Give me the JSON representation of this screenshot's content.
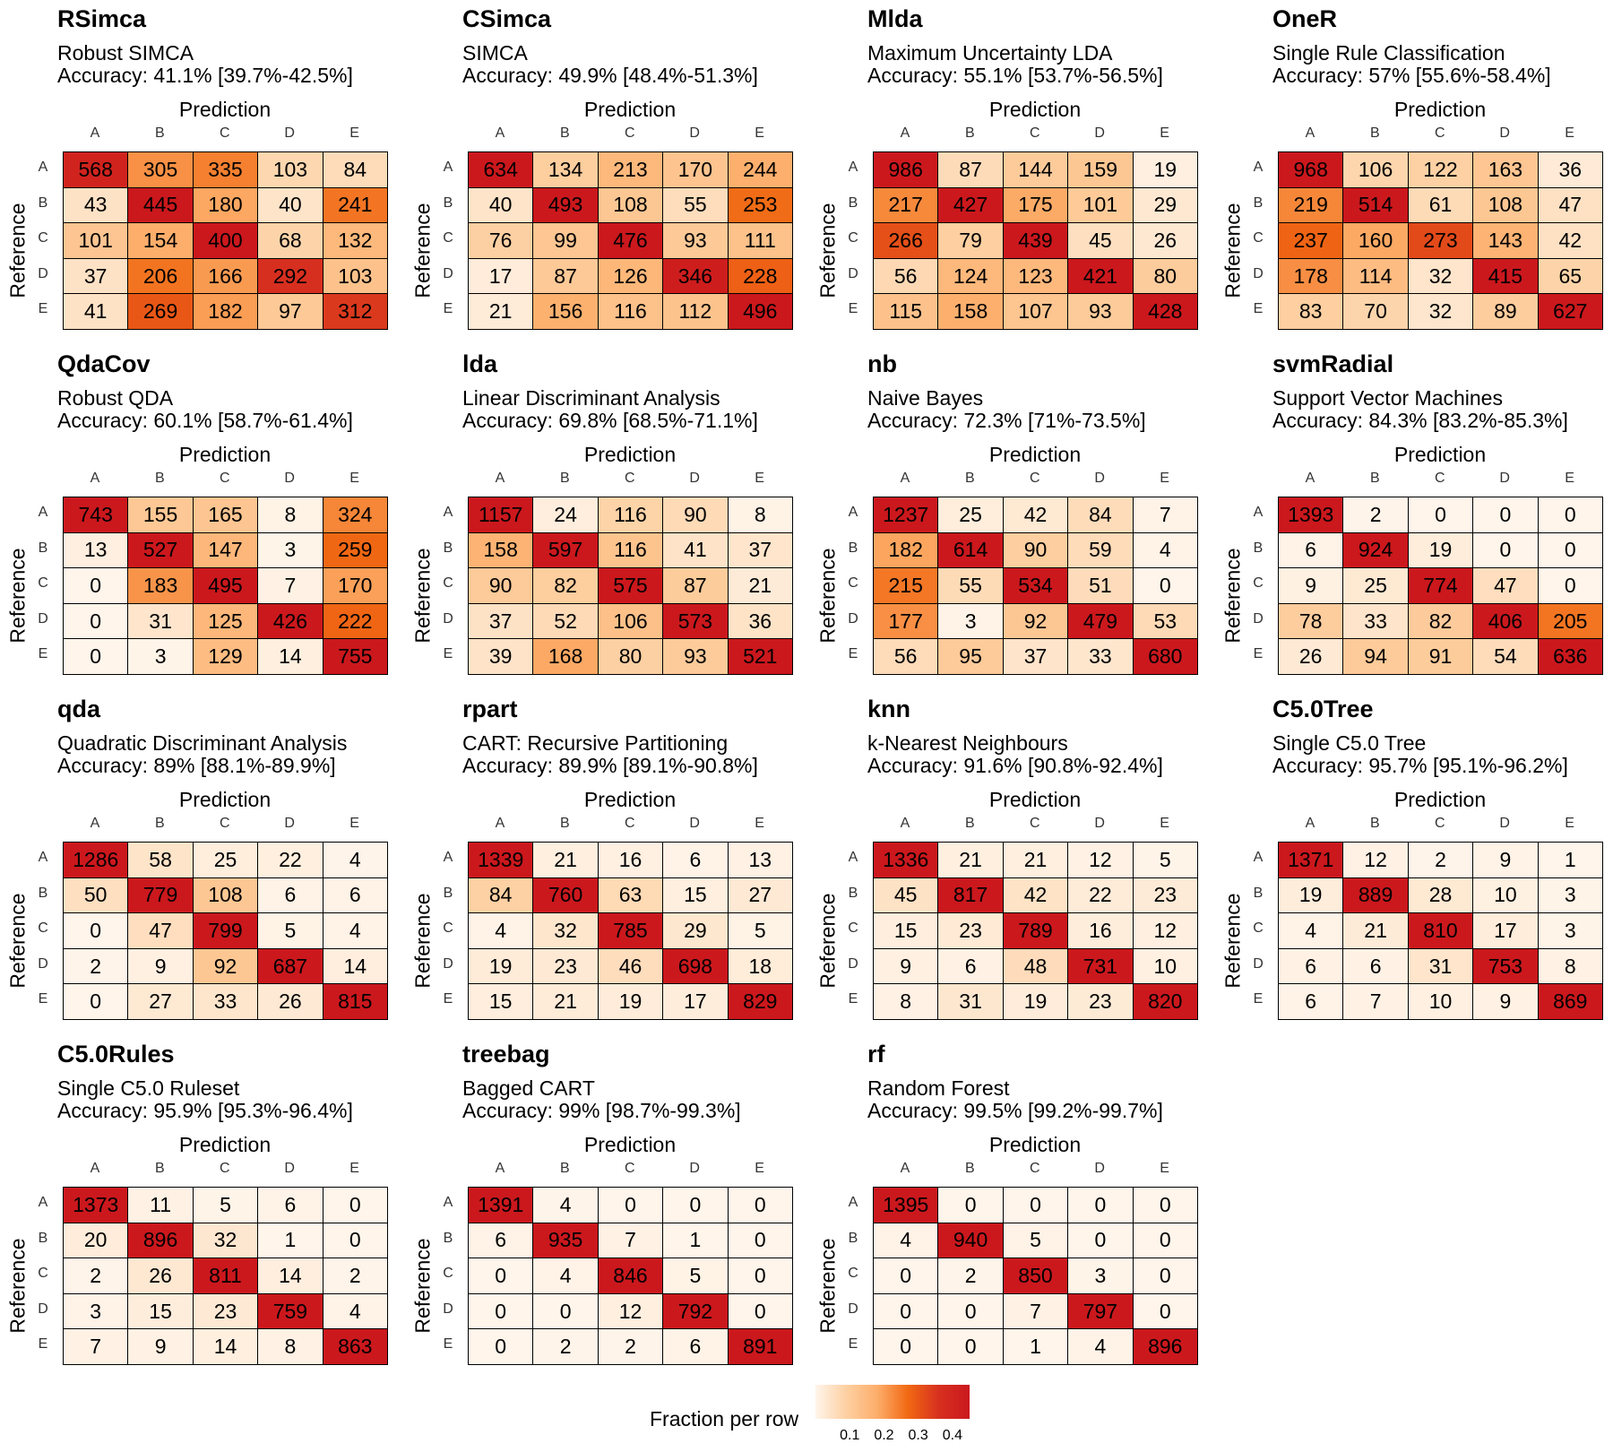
{
  "chart_data": {
    "type": "heatmap",
    "prediction_label": "Prediction",
    "reference_label": "Reference",
    "classes": [
      "A",
      "B",
      "C",
      "D",
      "E"
    ],
    "legend": {
      "title": "Fraction per row",
      "ticks": [
        "0.1",
        "0.2",
        "0.3",
        "0.4"
      ],
      "tick_values": [
        0.1,
        0.2,
        0.3,
        0.4
      ],
      "range": [
        0,
        0.45
      ],
      "colors": [
        "#fff5eb",
        "#fdd0a2",
        "#fdae6b",
        "#f16913",
        "#d7301f",
        "#cb181d"
      ]
    },
    "panels": [
      {
        "title": "RSimca",
        "subtitle": "Robust SIMCA",
        "accuracy": "Accuracy: 41.1% [39.7%-42.5%]",
        "matrix": [
          [
            568,
            305,
            335,
            103,
            84
          ],
          [
            43,
            445,
            180,
            40,
            241
          ],
          [
            101,
            154,
            400,
            68,
            132
          ],
          [
            37,
            206,
            166,
            292,
            103
          ],
          [
            41,
            269,
            182,
            97,
            312
          ]
        ]
      },
      {
        "title": "CSimca",
        "subtitle": "SIMCA",
        "accuracy": "Accuracy: 49.9% [48.4%-51.3%]",
        "matrix": [
          [
            634,
            134,
            213,
            170,
            244
          ],
          [
            40,
            493,
            108,
            55,
            253
          ],
          [
            76,
            99,
            476,
            93,
            111
          ],
          [
            17,
            87,
            126,
            346,
            228
          ],
          [
            21,
            156,
            116,
            112,
            496
          ]
        ]
      },
      {
        "title": "Mlda",
        "subtitle": "Maximum Uncertainty LDA",
        "accuracy": "Accuracy: 55.1% [53.7%-56.5%]",
        "matrix": [
          [
            986,
            87,
            144,
            159,
            19
          ],
          [
            217,
            427,
            175,
            101,
            29
          ],
          [
            266,
            79,
            439,
            45,
            26
          ],
          [
            56,
            124,
            123,
            421,
            80
          ],
          [
            115,
            158,
            107,
            93,
            428
          ]
        ]
      },
      {
        "title": "OneR",
        "subtitle": "Single Rule Classification",
        "accuracy": "Accuracy: 57% [55.6%-58.4%]",
        "matrix": [
          [
            968,
            106,
            122,
            163,
            36
          ],
          [
            219,
            514,
            61,
            108,
            47
          ],
          [
            237,
            160,
            273,
            143,
            42
          ],
          [
            178,
            114,
            32,
            415,
            65
          ],
          [
            83,
            70,
            32,
            89,
            627
          ]
        ]
      },
      {
        "title": "QdaCov",
        "subtitle": "Robust QDA",
        "accuracy": "Accuracy: 60.1% [58.7%-61.4%]",
        "matrix": [
          [
            743,
            155,
            165,
            8,
            324
          ],
          [
            13,
            527,
            147,
            3,
            259
          ],
          [
            0,
            183,
            495,
            7,
            170
          ],
          [
            0,
            31,
            125,
            426,
            222
          ],
          [
            0,
            3,
            129,
            14,
            755
          ]
        ]
      },
      {
        "title": "lda",
        "subtitle": "Linear Discriminant Analysis",
        "accuracy": "Accuracy: 69.8% [68.5%-71.1%]",
        "matrix": [
          [
            1157,
            24,
            116,
            90,
            8
          ],
          [
            158,
            597,
            116,
            41,
            37
          ],
          [
            90,
            82,
            575,
            87,
            21
          ],
          [
            37,
            52,
            106,
            573,
            36
          ],
          [
            39,
            168,
            80,
            93,
            521
          ]
        ]
      },
      {
        "title": "nb",
        "subtitle": "Naive Bayes",
        "accuracy": "Accuracy: 72.3% [71%-73.5%]",
        "matrix": [
          [
            1237,
            25,
            42,
            84,
            7
          ],
          [
            182,
            614,
            90,
            59,
            4
          ],
          [
            215,
            55,
            534,
            51,
            0
          ],
          [
            177,
            3,
            92,
            479,
            53
          ],
          [
            56,
            95,
            37,
            33,
            680
          ]
        ]
      },
      {
        "title": "svmRadial",
        "subtitle": "Support Vector Machines",
        "accuracy": "Accuracy: 84.3% [83.2%-85.3%]",
        "matrix": [
          [
            1393,
            2,
            0,
            0,
            0
          ],
          [
            6,
            924,
            19,
            0,
            0
          ],
          [
            9,
            25,
            774,
            47,
            0
          ],
          [
            78,
            33,
            82,
            406,
            205
          ],
          [
            26,
            94,
            91,
            54,
            636
          ]
        ]
      },
      {
        "title": "qda",
        "subtitle": "Quadratic Discriminant Analysis",
        "accuracy": "Accuracy: 89% [88.1%-89.9%]",
        "matrix": [
          [
            1286,
            58,
            25,
            22,
            4
          ],
          [
            50,
            779,
            108,
            6,
            6
          ],
          [
            0,
            47,
            799,
            5,
            4
          ],
          [
            2,
            9,
            92,
            687,
            14
          ],
          [
            0,
            27,
            33,
            26,
            815
          ]
        ]
      },
      {
        "title": "rpart",
        "subtitle": "CART: Recursive Partitioning",
        "accuracy": "Accuracy: 89.9% [89.1%-90.8%]",
        "matrix": [
          [
            1339,
            21,
            16,
            6,
            13
          ],
          [
            84,
            760,
            63,
            15,
            27
          ],
          [
            4,
            32,
            785,
            29,
            5
          ],
          [
            19,
            23,
            46,
            698,
            18
          ],
          [
            15,
            21,
            19,
            17,
            829
          ]
        ]
      },
      {
        "title": "knn",
        "subtitle": "k-Nearest Neighbours",
        "accuracy": "Accuracy: 91.6% [90.8%-92.4%]",
        "matrix": [
          [
            1336,
            21,
            21,
            12,
            5
          ],
          [
            45,
            817,
            42,
            22,
            23
          ],
          [
            15,
            23,
            789,
            16,
            12
          ],
          [
            9,
            6,
            48,
            731,
            10
          ],
          [
            8,
            31,
            19,
            23,
            820
          ]
        ]
      },
      {
        "title": "C5.0Tree",
        "subtitle": "Single C5.0 Tree",
        "accuracy": "Accuracy: 95.7% [95.1%-96.2%]",
        "matrix": [
          [
            1371,
            12,
            2,
            9,
            1
          ],
          [
            19,
            889,
            28,
            10,
            3
          ],
          [
            4,
            21,
            810,
            17,
            3
          ],
          [
            6,
            6,
            31,
            753,
            8
          ],
          [
            6,
            7,
            10,
            9,
            869
          ]
        ]
      },
      {
        "title": "C5.0Rules",
        "subtitle": "Single C5.0 Ruleset",
        "accuracy": "Accuracy: 95.9% [95.3%-96.4%]",
        "matrix": [
          [
            1373,
            11,
            5,
            6,
            0
          ],
          [
            20,
            896,
            32,
            1,
            0
          ],
          [
            2,
            26,
            811,
            14,
            2
          ],
          [
            3,
            15,
            23,
            759,
            4
          ],
          [
            7,
            9,
            14,
            8,
            863
          ]
        ]
      },
      {
        "title": "treebag",
        "subtitle": "Bagged CART",
        "accuracy": "Accuracy: 99% [98.7%-99.3%]",
        "matrix": [
          [
            1391,
            4,
            0,
            0,
            0
          ],
          [
            6,
            935,
            7,
            1,
            0
          ],
          [
            0,
            4,
            846,
            5,
            0
          ],
          [
            0,
            0,
            12,
            792,
            0
          ],
          [
            0,
            2,
            2,
            6,
            891
          ]
        ]
      },
      {
        "title": "rf",
        "subtitle": "Random Forest",
        "accuracy": "Accuracy: 99.5% [99.2%-99.7%]",
        "matrix": [
          [
            1395,
            0,
            0,
            0,
            0
          ],
          [
            4,
            940,
            5,
            0,
            0
          ],
          [
            0,
            2,
            850,
            3,
            0
          ],
          [
            0,
            0,
            7,
            797,
            0
          ],
          [
            0,
            0,
            1,
            4,
            896
          ]
        ]
      }
    ]
  }
}
